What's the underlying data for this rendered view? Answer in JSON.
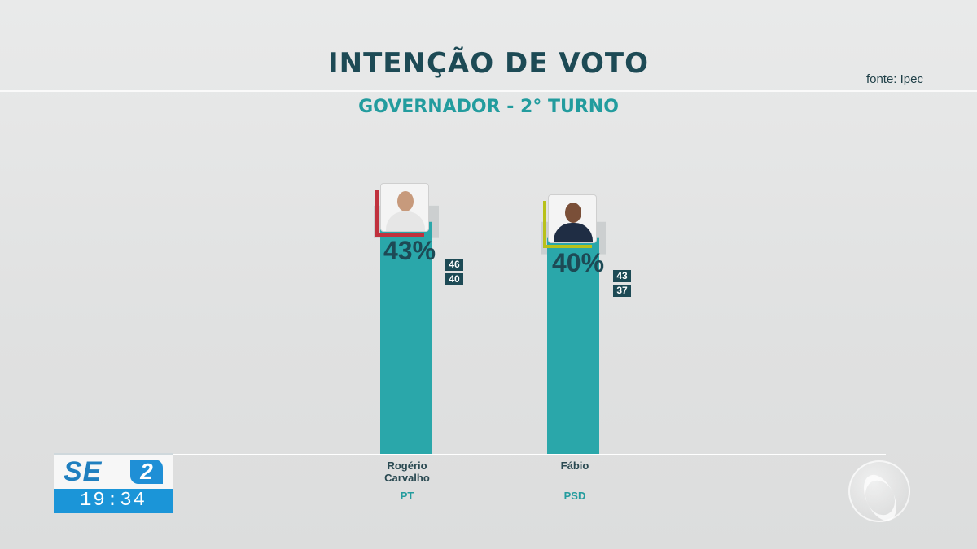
{
  "header": {
    "title": "INTENÇÃO DE VOTO",
    "subtitle": "GOVERNADOR - 2° TURNO",
    "source": "fonte: Ipec"
  },
  "chart_data": {
    "type": "bar",
    "title": "INTENÇÃO DE VOTO",
    "subtitle": "GOVERNADOR - 2° TURNO",
    "categories": [
      "Rogério Carvalho",
      "Fábio"
    ],
    "values": [
      43,
      40
    ],
    "value_labels": [
      "43%",
      "40%"
    ],
    "margin_upper": [
      46,
      43
    ],
    "margin_lower": [
      40,
      37
    ],
    "parties": [
      "PT",
      "PSD"
    ],
    "party_colors": [
      "#c0313d",
      "#b8c11a"
    ],
    "bar_color": "#2aa7aa",
    "ylim": [
      0,
      60
    ],
    "grid": false,
    "legend": "none"
  },
  "candidates": [
    {
      "name_line1": "Rogério",
      "name_line2": "Carvalho",
      "party": "PT"
    },
    {
      "name_line1": "Fábio",
      "name_line2": "",
      "party": "PSD"
    }
  ],
  "broadcast": {
    "logo_text": "SE",
    "logo_number": "2",
    "time": "19:34"
  },
  "icons": [
    "candidate-photo-icon",
    "tv-network-logo-icon"
  ]
}
